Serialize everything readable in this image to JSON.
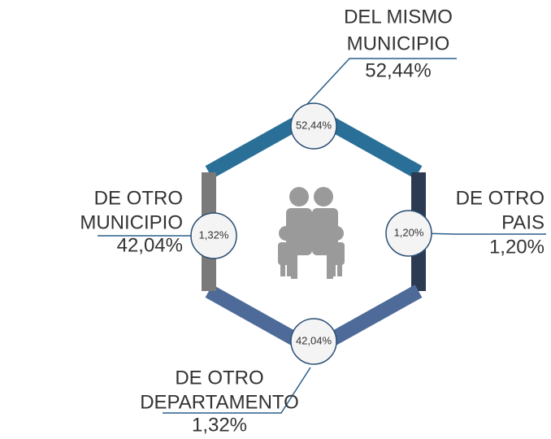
{
  "chart_data": {
    "type": "hexagon",
    "categories": [
      [
        "DEL MISMO",
        "MUNICIPIO"
      ],
      [
        "DE OTRO",
        "PAIS"
      ],
      [
        "DE OTRO",
        "MUNICIPIO"
      ],
      [
        "DE OTRO",
        "DEPARTAMENTO"
      ]
    ],
    "values": [
      52.44,
      1.2,
      42.04,
      1.32
    ],
    "value_labels": [
      "52,44%",
      "1,20%",
      "42,04%",
      "1,32%"
    ],
    "colors": [
      "#2a6f97",
      "#2c3b52",
      "#4d6a98",
      "#7a7a7a"
    ]
  }
}
